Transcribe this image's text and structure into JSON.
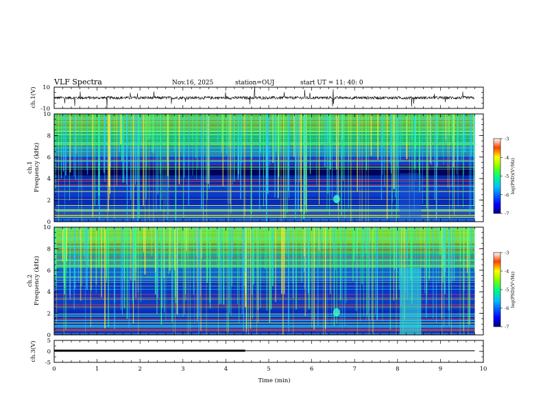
{
  "header": {
    "title": "VLF Spectra",
    "date": "Nov.16, 2025",
    "station": "station=OUJ",
    "start": "start  UT =  11: 40: 0"
  },
  "chart_data": [
    {
      "type": "line",
      "panel": "ch1-waveform",
      "ylabel": "ch.1(V)",
      "ylim": [
        -10,
        10
      ],
      "yticks": [
        "10",
        "-10"
      ],
      "xlim": [
        0,
        10
      ],
      "baseline": 0
    },
    {
      "type": "heatmap",
      "panel": "ch1-spectrogram",
      "ylabel": "ch.1\nFrequency (kHz)",
      "ylim": [
        0,
        10
      ],
      "yticks": [
        "0",
        "2",
        "4",
        "6",
        "8",
        "10"
      ],
      "xlim": [
        0,
        10
      ],
      "data_end_min": 9.8,
      "colorbar": {
        "label": "log(PSD)(V²/Hz)",
        "ticks": [
          "-3",
          "-4",
          "-5",
          "-6",
          "-7"
        ],
        "range": [
          -7,
          -3
        ]
      }
    },
    {
      "type": "heatmap",
      "panel": "ch2-spectrogram",
      "ylabel": "ch.2\nFrequency (kHz)",
      "ylim": [
        0,
        10
      ],
      "yticks": [
        "0",
        "2",
        "4",
        "6",
        "8",
        "10"
      ],
      "xlim": [
        0,
        10
      ],
      "data_end_min": 9.8,
      "colorbar": {
        "label": "log(PSD)(V²/Hz)",
        "ticks": [
          "-3",
          "-4",
          "-5",
          "-6",
          "-7"
        ],
        "range": [
          -7,
          -3
        ]
      }
    },
    {
      "type": "line",
      "panel": "ch3-waveform",
      "ylabel": "ch.3(V)",
      "ylim": [
        -5,
        5
      ],
      "yticks": [
        "5",
        "0",
        "-5"
      ],
      "xlim": [
        0,
        10
      ],
      "xticks": [
        "0",
        "1",
        "2",
        "3",
        "4",
        "5",
        "6",
        "7",
        "8",
        "9",
        "10"
      ],
      "xlabel": "Time (min)",
      "series": [
        {
          "x": [
            0,
            4.45
          ],
          "y": [
            0.3,
            0.3
          ],
          "style": "thick"
        },
        {
          "x": [
            4.45,
            9.8
          ],
          "y": [
            0.3,
            0.3
          ],
          "style": "thin"
        }
      ]
    }
  ],
  "colors": {
    "axis": "#000000",
    "background": "#ffffff"
  }
}
